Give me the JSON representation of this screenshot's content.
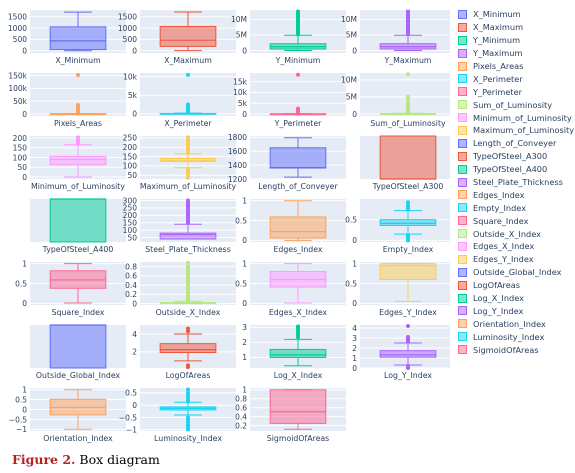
{
  "caption": {
    "label": "Figure 2.",
    "text": " Box diagram"
  },
  "colors": [
    "#636efa",
    "#EF553B",
    "#00cc96",
    "#ab63fa",
    "#FFA15A",
    "#19d3f3",
    "#FF6692",
    "#B6E880",
    "#FF97FF",
    "#FECB52"
  ],
  "chart_data": [
    {
      "type": "box",
      "name": "X_Minimum",
      "xlabel": "X_Minimum",
      "ylim": [
        -100,
        1800
      ],
      "yticks": [
        0,
        500,
        1000,
        1500
      ],
      "ytick_labels": [
        "0",
        "500",
        "1000",
        "1500"
      ],
      "box": {
        "min": 0,
        "q1": 50,
        "median": 435,
        "q3": 1055,
        "max": 1705
      },
      "outliers": []
    },
    {
      "type": "box",
      "name": "X_Maximum",
      "xlabel": "X_Maximum",
      "ylim": [
        -100,
        1800
      ],
      "yticks": [
        0,
        500,
        1000,
        1500
      ],
      "ytick_labels": [
        "0",
        "500",
        "1000",
        "1500"
      ],
      "box": {
        "min": 4,
        "q1": 192,
        "median": 467,
        "q3": 1072,
        "max": 1713
      },
      "outliers": []
    },
    {
      "type": "box",
      "name": "Y_Minimum",
      "xlabel": "Y_Minimum",
      "ylim": [
        -800000,
        13000000
      ],
      "yticks": [
        0,
        5000000,
        10000000
      ],
      "ytick_labels": [
        "0",
        "5M",
        "10M"
      ],
      "box": {
        "min": 6700,
        "q1": 471000,
        "median": 1204000,
        "q3": 2183000,
        "max": 4900000
      },
      "outliers": [
        5200000,
        5600000,
        6000000,
        6500000,
        7000000,
        7500000,
        8000000,
        8500000,
        9000000,
        9500000,
        10000000,
        10500000,
        11000000,
        11500000,
        12000000,
        12500000
      ]
    },
    {
      "type": "box",
      "name": "Y_Maximum",
      "xlabel": "Y_Maximum",
      "ylim": [
        -800000,
        13000000
      ],
      "yticks": [
        0,
        5000000,
        10000000
      ],
      "ytick_labels": [
        "0",
        "5M",
        "10M"
      ],
      "box": {
        "min": 6700,
        "q1": 471000,
        "median": 1204000,
        "q3": 2183000,
        "max": 4900000
      },
      "outliers": [
        5200000,
        5600000,
        6000000,
        6500000,
        7000000,
        7500000,
        8000000,
        8500000,
        9000000,
        9500000,
        10000000,
        10500000,
        11000000,
        11500000,
        12000000,
        12500000
      ]
    },
    {
      "type": "box",
      "name": "Pixels_Areas",
      "xlabel": "Pixels_Areas",
      "ylim": [
        -8000,
        160000
      ],
      "yticks": [
        0,
        50000,
        100000,
        150000
      ],
      "ytick_labels": [
        "0",
        "50k",
        "100k",
        "150k"
      ],
      "box": {
        "min": 2,
        "q1": 84,
        "median": 174,
        "q3": 822,
        "max": 1900
      },
      "outliers": [
        3000,
        5000,
        8000,
        12000,
        17000,
        22000,
        28000,
        35000,
        152000
      ]
    },
    {
      "type": "box",
      "name": "X_Perimeter",
      "xlabel": "X_Perimeter",
      "ylim": [
        -600,
        11000
      ],
      "yticks": [
        0,
        5000,
        10000
      ],
      "ytick_labels": [
        "0",
        "5k",
        "10k"
      ],
      "box": {
        "min": 2,
        "q1": 15,
        "median": 26,
        "q3": 84,
        "max": 190
      },
      "outliers": [
        300,
        600,
        1000,
        1500,
        2000,
        2500,
        10500
      ]
    },
    {
      "type": "box",
      "name": "Y_Perimeter",
      "xlabel": "Y_Perimeter",
      "ylim": [
        -900,
        19000
      ],
      "yticks": [
        0,
        5000,
        10000,
        15000
      ],
      "ytick_labels": [
        "0",
        "5k",
        "10k",
        "15k"
      ],
      "box": {
        "min": 1,
        "q1": 13,
        "median": 25,
        "q3": 84,
        "max": 190
      },
      "outliers": [
        300,
        700,
        1200,
        1800,
        2500,
        18200
      ]
    },
    {
      "type": "box",
      "name": "Sum_of_Luminosity",
      "xlabel": "Sum_of_Luminosity",
      "ylim": [
        -600000,
        12000000
      ],
      "yticks": [
        0,
        5000000,
        10000000
      ],
      "ytick_labels": [
        "0",
        "5M",
        "10M"
      ],
      "box": {
        "min": 250,
        "q1": 9500,
        "median": 19200,
        "q3": 83000,
        "max": 190000
      },
      "outliers": [
        300000,
        600000,
        1000000,
        1500000,
        2000000,
        2500000,
        3000000,
        4000000,
        5000000,
        11600000
      ]
    },
    {
      "type": "box",
      "name": "Minimum_of_Luminosity",
      "xlabel": "Minimum_of_Luminosity",
      "ylim": [
        -10,
        210
      ],
      "yticks": [
        0,
        50,
        100,
        150,
        200
      ],
      "ytick_labels": [
        "0",
        "50",
        "100",
        "150",
        "200"
      ],
      "box": {
        "min": 0,
        "q1": 63,
        "median": 90,
        "q3": 106,
        "max": 165
      },
      "outliers": [
        170,
        180,
        190,
        203
      ]
    },
    {
      "type": "box",
      "name": "Maximum_of_Luminosity",
      "xlabel": "Maximum_of_Luminosity",
      "ylim": [
        30,
        260
      ],
      "yticks": [
        50,
        100,
        150,
        200,
        250
      ],
      "ytick_labels": [
        "50",
        "100",
        "150",
        "200",
        "250"
      ],
      "box": {
        "min": 90,
        "q1": 124,
        "median": 127,
        "q3": 140,
        "max": 165
      },
      "outliers": [
        37,
        50,
        60,
        70,
        80,
        170,
        180,
        190,
        200,
        210,
        220,
        230,
        240,
        253
      ]
    },
    {
      "type": "box",
      "name": "Length_of_Conveyer",
      "xlabel": "Length_of_Conveyer",
      "ylim": [
        1200,
        1820
      ],
      "yticks": [
        1200,
        1400,
        1600,
        1800
      ],
      "ytick_labels": [
        "1200",
        "1400",
        "1600",
        "1800"
      ],
      "box": {
        "min": 1227,
        "q1": 1358,
        "median": 1364,
        "q3": 1650,
        "max": 1794
      },
      "outliers": []
    },
    {
      "type": "box",
      "name": "TypeOfSteel_A300",
      "xlabel": "TypeOfSteel_A300",
      "ylim": [
        0,
        1
      ],
      "yticks": [],
      "ytick_labels": [],
      "box": {
        "min": 0,
        "q1": 0,
        "median": 0,
        "q3": 1,
        "max": 1
      },
      "outliers": []
    },
    {
      "type": "box",
      "name": "TypeOfSteel_A400",
      "xlabel": "TypeOfSteel_A400",
      "ylim": [
        0,
        1
      ],
      "yticks": [],
      "ytick_labels": [],
      "box": {
        "min": 0,
        "q1": 0,
        "median": 1,
        "q3": 1,
        "max": 1
      },
      "outliers": []
    },
    {
      "type": "box",
      "name": "Steel_Plate_Thickness",
      "xlabel": "Steel_Plate_Thickness",
      "ylim": [
        20,
        310
      ],
      "yticks": [
        50,
        100,
        150,
        200,
        250,
        300
      ],
      "ytick_labels": [
        "50",
        "100",
        "150",
        "200",
        "250",
        "300"
      ],
      "box": {
        "min": 40,
        "q1": 40,
        "median": 70,
        "q3": 80,
        "max": 140
      },
      "outliers": [
        150,
        160,
        175,
        185,
        200,
        210,
        220,
        230,
        245,
        255,
        265,
        275,
        285,
        300
      ]
    },
    {
      "type": "box",
      "name": "Edges_Index",
      "xlabel": "Edges_Index",
      "ylim": [
        -0.04,
        1.04
      ],
      "yticks": [
        0,
        0.5,
        1
      ],
      "ytick_labels": [
        "0",
        "0.5",
        "1"
      ],
      "box": {
        "min": 0,
        "q1": 0.06,
        "median": 0.22,
        "q3": 0.59,
        "max": 0.995
      },
      "outliers": []
    },
    {
      "type": "box",
      "name": "Empty_Index",
      "xlabel": "Empty_Index",
      "ylim": [
        -0.04,
        1.0
      ],
      "yticks": [
        0,
        0.5
      ],
      "ytick_labels": [
        "0",
        "0.5"
      ],
      "box": {
        "min": 0.15,
        "q1": 0.36,
        "median": 0.41,
        "q3": 0.5,
        "max": 0.72
      },
      "outliers": [
        0.0,
        0.05,
        0.09,
        0.12,
        0.76,
        0.8,
        0.85,
        0.92
      ]
    },
    {
      "type": "box",
      "name": "Square_Index",
      "xlabel": "Square_Index",
      "ylim": [
        -0.04,
        1.04
      ],
      "yticks": [
        0,
        0.5,
        1
      ],
      "ytick_labels": [
        "0",
        "0.5",
        "1"
      ],
      "box": {
        "min": 0.01,
        "q1": 0.38,
        "median": 0.59,
        "q3": 0.82,
        "max": 1.0
      },
      "outliers": []
    },
    {
      "type": "box",
      "name": "Outside_X_Index",
      "xlabel": "Outside_X_Index",
      "ylim": [
        -0.03,
        0.9
      ],
      "yticks": [
        0,
        0.2,
        0.4,
        0.6,
        0.8
      ],
      "ytick_labels": [
        "0",
        "0.2",
        "0.4",
        "0.6",
        "0.8"
      ],
      "box": {
        "min": 0.0,
        "q1": 0.007,
        "median": 0.01,
        "q3": 0.024,
        "max": 0.05
      },
      "outliers": [
        0.06,
        0.08,
        0.1,
        0.13,
        0.16,
        0.2,
        0.25,
        0.3,
        0.35,
        0.4,
        0.45,
        0.5,
        0.55,
        0.6,
        0.65,
        0.7,
        0.75,
        0.8,
        0.88
      ]
    },
    {
      "type": "box",
      "name": "Edges_X_Index",
      "xlabel": "Edges_X_Index",
      "ylim": [
        -0.04,
        1.04
      ],
      "yticks": [
        0,
        0.5,
        1
      ],
      "ytick_labels": [
        "0",
        "0.5",
        "1"
      ],
      "box": {
        "min": 0.01,
        "q1": 0.41,
        "median": 0.6,
        "q3": 0.8,
        "max": 1.0
      },
      "outliers": []
    },
    {
      "type": "box",
      "name": "Edges_Y_Index",
      "xlabel": "Edges_Y_Index",
      "ylim": [
        -0.04,
        1.04
      ],
      "yticks": [
        0,
        0.5,
        1
      ],
      "ytick_labels": [
        "0",
        "0.5",
        "1"
      ],
      "box": {
        "min": 0.05,
        "q1": 0.6,
        "median": 0.95,
        "q3": 1.0,
        "max": 1.0
      },
      "outliers": []
    },
    {
      "type": "box",
      "name": "Outside_Global_Index",
      "xlabel": "Outside_Global_Index",
      "ylim": [
        0,
        1
      ],
      "yticks": [],
      "ytick_labels": [],
      "box": {
        "min": 0,
        "q1": 0,
        "median": 1,
        "q3": 1,
        "max": 1
      },
      "outliers": []
    },
    {
      "type": "box",
      "name": "LogOfAreas",
      "xlabel": "LogOfAreas",
      "ylim": [
        0.2,
        5.0
      ],
      "yticks": [
        2,
        4
      ],
      "ytick_labels": [
        "2",
        "4"
      ],
      "box": {
        "min": 1.0,
        "q1": 1.93,
        "median": 2.24,
        "q3": 2.92,
        "max": 4.0
      },
      "outliers": [
        0.3,
        0.5,
        4.3,
        4.6
      ]
    },
    {
      "type": "box",
      "name": "Log_X_Index",
      "xlabel": "Log_X_Index",
      "ylim": [
        0.3,
        3.15
      ],
      "yticks": [
        1,
        2,
        3
      ],
      "ytick_labels": [
        "1",
        "2",
        "3"
      ],
      "box": {
        "min": 0.45,
        "q1": 1.0,
        "median": 1.17,
        "q3": 1.53,
        "max": 2.2
      },
      "outliers": [
        2.35,
        2.5,
        2.65,
        2.8,
        2.95,
        3.05
      ]
    },
    {
      "type": "box",
      "name": "Log_Y_Index",
      "xlabel": "Log_Y_Index",
      "ylim": [
        0,
        4.3
      ],
      "yticks": [
        0,
        1,
        2,
        3,
        4
      ],
      "ytick_labels": [
        "0",
        "1",
        "2",
        "3",
        "4"
      ],
      "box": {
        "min": 0.3,
        "q1": 1.08,
        "median": 1.32,
        "q3": 1.73,
        "max": 2.5
      },
      "outliers": [
        0.0,
        0.1,
        0.2,
        2.7,
        2.9,
        3.1,
        4.2
      ]
    },
    {
      "type": "box",
      "name": "Orientation_Index",
      "xlabel": "Orientation_Index",
      "ylim": [
        -1.08,
        1.08
      ],
      "yticks": [
        -1,
        -0.5,
        0,
        0.5,
        1
      ],
      "ytick_labels": [
        "−1",
        "−0.5",
        "0",
        "0.5",
        "1"
      ],
      "box": {
        "min": -0.99,
        "q1": -0.27,
        "median": 0.1,
        "q3": 0.51,
        "max": 0.99
      },
      "outliers": []
    },
    {
      "type": "box",
      "name": "Luminosity_Index",
      "xlabel": "Luminosity_Index",
      "ylim": [
        -1.05,
        0.7
      ],
      "yticks": [
        -1,
        -0.5,
        0,
        0.5
      ],
      "ytick_labels": [
        "−1",
        "−0.5",
        "0",
        "0.5"
      ],
      "box": {
        "min": -0.4,
        "q1": -0.195,
        "median": -0.13,
        "q3": -0.07,
        "max": 0.12
      },
      "outliers": [
        -0.99,
        -0.9,
        -0.8,
        -0.7,
        -0.6,
        -0.5,
        0.15,
        0.2,
        0.3,
        0.4,
        0.5,
        0.64
      ]
    },
    {
      "type": "box",
      "name": "SigmoidOfAreas",
      "xlabel": "SigmoidOfAreas",
      "ylim": [
        0.08,
        1.04
      ],
      "yticks": [
        0.2,
        0.4,
        0.6,
        0.8,
        1
      ],
      "ytick_labels": [
        "0.2",
        "0.4",
        "0.6",
        "0.8",
        "1"
      ],
      "box": {
        "min": 0.12,
        "q1": 0.25,
        "median": 0.51,
        "q3": 1.0,
        "max": 1.0
      },
      "outliers": []
    }
  ]
}
